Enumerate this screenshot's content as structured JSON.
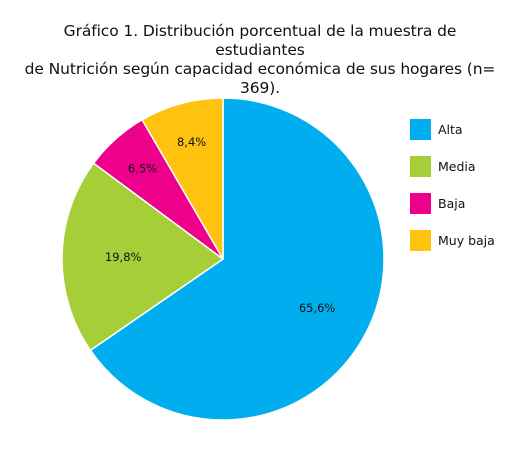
{
  "title_lines": [
    "Gráfico 1. Distribución porcentual de la muestra de estudiantes",
    "de Nutrición según capacidad económica de sus hogares (n=",
    "369)."
  ],
  "chart_data": {
    "type": "pie",
    "title": "Gráfico 1. Distribución porcentual de la muestra de estudiantes de Nutrición según capacidad económica de sus hogares (n= 369).",
    "start_angle_deg": 0,
    "direction": "clockwise",
    "legend_position": "right",
    "slices": [
      {
        "label": "Alta",
        "value": 65.6,
        "display": "65,6%",
        "color": "#00AEEF"
      },
      {
        "label": "Media",
        "value": 19.8,
        "display": "19,8%",
        "color": "#A6CE39"
      },
      {
        "label": "Baja",
        "value": 6.5,
        "display": "6,5%",
        "color": "#EC008C"
      },
      {
        "label": "Muy baja",
        "value": 8.4,
        "display": "8,4%",
        "color": "#FFC20E"
      }
    ]
  }
}
